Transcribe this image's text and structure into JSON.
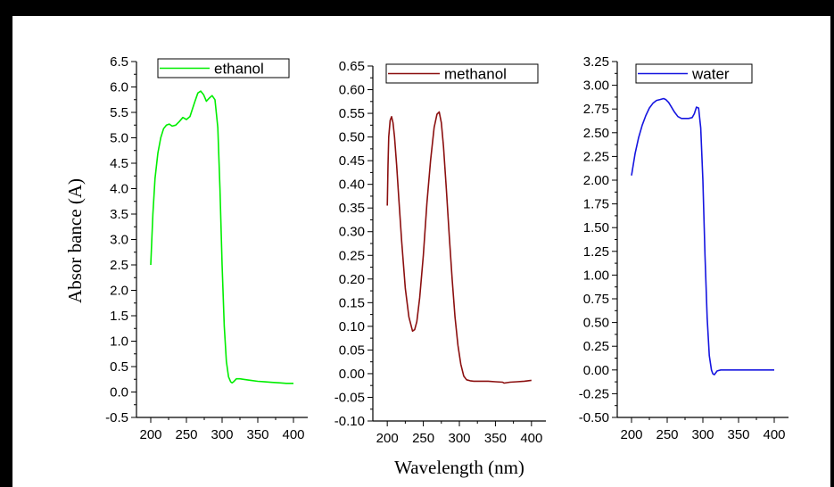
{
  "xlabel": "Wavelength (nm)",
  "ylabel": "Absor bance (A)",
  "chart_data": [
    {
      "type": "line",
      "series": [
        {
          "name": "ethanol",
          "color": "#00ee00"
        }
      ],
      "xlim": [
        180,
        420
      ],
      "ylim": [
        -0.5,
        6.5
      ],
      "xticks": [
        200,
        250,
        300,
        350,
        400
      ],
      "yticks": [
        "-0.5",
        "0.0",
        "0.5",
        "1.0",
        "1.5",
        "2.0",
        "2.5",
        "3.0",
        "3.5",
        "4.0",
        "4.5",
        "5.0",
        "5.5",
        "6.0",
        "6.5"
      ],
      "x": [
        200,
        203,
        206,
        210,
        214,
        218,
        222,
        226,
        230,
        235,
        240,
        245,
        250,
        255,
        258,
        262,
        266,
        270,
        274,
        278,
        282,
        286,
        290,
        294,
        297,
        300,
        303,
        306,
        309,
        312,
        314,
        316,
        318,
        320,
        325,
        330,
        340,
        350,
        360,
        370,
        380,
        390,
        400
      ],
      "y": [
        2.5,
        3.5,
        4.2,
        4.7,
        5.0,
        5.18,
        5.25,
        5.27,
        5.23,
        5.25,
        5.32,
        5.4,
        5.36,
        5.42,
        5.55,
        5.72,
        5.88,
        5.92,
        5.85,
        5.72,
        5.78,
        5.83,
        5.75,
        5.2,
        4.0,
        2.5,
        1.3,
        0.6,
        0.3,
        0.2,
        0.18,
        0.2,
        0.23,
        0.26,
        0.26,
        0.25,
        0.23,
        0.21,
        0.2,
        0.19,
        0.18,
        0.17,
        0.17
      ]
    },
    {
      "type": "line",
      "series": [
        {
          "name": "methanol",
          "color": "#8b0f0f"
        }
      ],
      "xlim": [
        180,
        420
      ],
      "ylim": [
        -0.1,
        0.65
      ],
      "xticks": [
        200,
        250,
        300,
        350,
        400
      ],
      "yticks": [
        "-0.10",
        "-0.05",
        "0.00",
        "0.05",
        "0.10",
        "0.15",
        "0.20",
        "0.25",
        "0.30",
        "0.35",
        "0.40",
        "0.45",
        "0.50",
        "0.55",
        "0.60",
        "0.65"
      ],
      "x": [
        200,
        201,
        202,
        204,
        206,
        208,
        210,
        213,
        216,
        220,
        225,
        230,
        235,
        238,
        241,
        245,
        250,
        255,
        260,
        265,
        269,
        272,
        275,
        278,
        282,
        286,
        290,
        294,
        298,
        302,
        306,
        310,
        315,
        320,
        330,
        340,
        350,
        360,
        362,
        370,
        380,
        390,
        400
      ],
      "y": [
        0.355,
        0.44,
        0.5,
        0.535,
        0.543,
        0.53,
        0.5,
        0.44,
        0.37,
        0.28,
        0.18,
        0.12,
        0.09,
        0.093,
        0.11,
        0.16,
        0.25,
        0.36,
        0.45,
        0.52,
        0.548,
        0.553,
        0.53,
        0.48,
        0.39,
        0.29,
        0.2,
        0.12,
        0.06,
        0.02,
        -0.005,
        -0.013,
        -0.015,
        -0.016,
        -0.016,
        -0.016,
        -0.017,
        -0.018,
        -0.02,
        -0.018,
        -0.017,
        -0.016,
        -0.014
      ]
    },
    {
      "type": "line",
      "series": [
        {
          "name": "water",
          "color": "#1515e0"
        }
      ],
      "xlim": [
        180,
        420
      ],
      "ylim": [
        -0.5,
        3.25
      ],
      "xticks": [
        200,
        250,
        300,
        350,
        400
      ],
      "yticks": [
        "-0.50",
        "-0.25",
        "0.00",
        "0.25",
        "0.50",
        "0.75",
        "1.00",
        "1.25",
        "1.50",
        "1.75",
        "2.00",
        "2.25",
        "2.50",
        "2.75",
        "3.00",
        "3.25"
      ],
      "x": [
        200,
        205,
        210,
        215,
        220,
        225,
        230,
        235,
        240,
        245,
        248,
        252,
        256,
        260,
        265,
        270,
        275,
        280,
        285,
        288,
        291,
        294,
        297,
        300,
        303,
        306,
        309,
        312,
        314,
        316,
        318,
        320,
        325,
        330,
        340,
        350,
        360,
        370,
        380,
        390,
        400
      ],
      "y": [
        2.05,
        2.28,
        2.45,
        2.58,
        2.68,
        2.76,
        2.81,
        2.84,
        2.85,
        2.86,
        2.85,
        2.82,
        2.77,
        2.72,
        2.67,
        2.65,
        2.65,
        2.65,
        2.66,
        2.7,
        2.77,
        2.76,
        2.55,
        2.0,
        1.2,
        0.55,
        0.15,
        0.0,
        -0.04,
        -0.05,
        -0.03,
        -0.01,
        0.0,
        0.0,
        0.0,
        0.0,
        0.0,
        0.0,
        0.0,
        0.0,
        0.0
      ]
    }
  ]
}
